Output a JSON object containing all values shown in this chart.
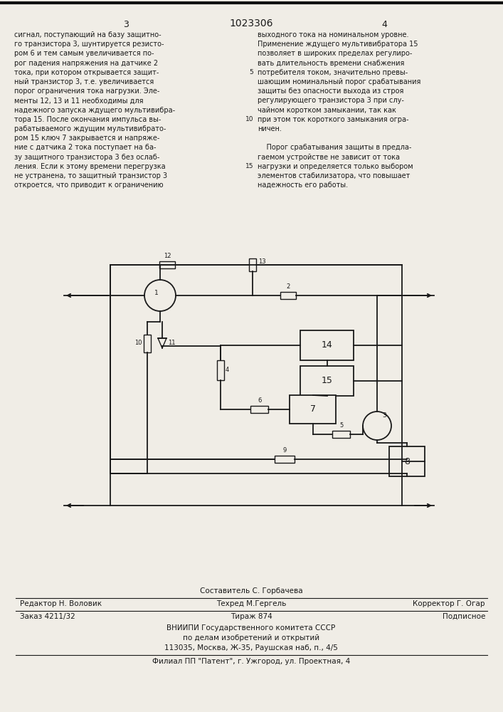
{
  "page_color": "#f0ede6",
  "text_color": "#1a1a1a",
  "page_num_left": "3",
  "page_num_center": "1023306",
  "page_num_right": "4",
  "col_left_lines": [
    "сигнал, поступающий на базу защитно-",
    "го транзистора 3, шунтируется резисто-",
    "ром 6 и тем самым увеличивается по-",
    "рог падения напряжения на датчике 2",
    "тока, при котором открывается защит-",
    "ный транзистор 3, т.е. увеличивается",
    "порог ограничения тока нагрузки. Эле-",
    "менты 12, 13 и 11 необходимы для",
    "надежного запуска ждущего мультивибра-",
    "тора 15. После окончания импульса вы-",
    "рабатываемого ждущим мультивибрато-",
    "ром 15 ключ 7 закрывается и напряже-",
    "ние с датчика 2 тока поступает на ба-",
    "зу защитного транзистора 3 без ослаб-",
    "ления. Если к этому времени перегрузка",
    "не устранена, то защитный транзистор 3",
    "откроется, что приводит к ограничению"
  ],
  "col_right_lines": [
    "выходного тока на номинальном уровне.",
    "Применение ждущего мультивибратора 15",
    "позволяет в широких пределах регулиро-",
    "вать длительность времени снабжения",
    "потребителя током, значительно превы-",
    "шающим номинальный порог срабатывания",
    "защиты без опасности выхода из строя",
    "регулирующего транзистора 3 при слу-",
    "чайном коротком замыкании, так как",
    "при этом ток короткого замыкания огра-",
    "ничен.",
    "",
    "    Порог срабатывания защиты в предла-",
    "гаемом устройстве не зависит от тока",
    "нагрузки и определяется только выбором",
    "элементов стабилизатора, что повышает",
    "надежность его работы."
  ],
  "footer_line1_center": "Составитель С. Горбачева",
  "footer_line2_left": "Редактор Н. Воловик",
  "footer_line2_center": "Техред М.Гергель",
  "footer_line2_right": "Корректор Г. Огар",
  "footer_line3_left": "Заказ 4211/32",
  "footer_line3_center": "Тираж 874",
  "footer_line3_right": "Подписное",
  "footer_line4": "ВНИИПИ Государственного комитета СССР",
  "footer_line5": "по делам изобретений и открытий",
  "footer_line6": "113035, Москва, Ж-35, Раушская наб, п., 4/5",
  "footer_line7": "Филиал ПП \"Патент\", г. Ужгород, ул. Проектная, 4"
}
